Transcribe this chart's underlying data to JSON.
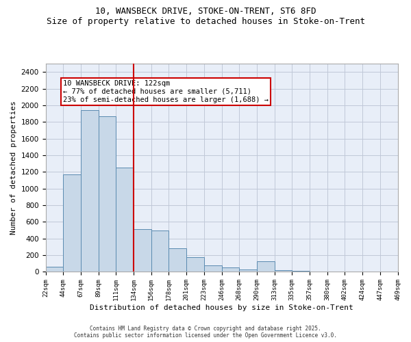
{
  "title_line1": "10, WANSBECK DRIVE, STOKE-ON-TRENT, ST6 8FD",
  "title_line2": "Size of property relative to detached houses in Stoke-on-Trent",
  "xlabel": "Distribution of detached houses by size in Stoke-on-Trent",
  "ylabel": "Number of detached properties",
  "annotation_line1": "10 WANSBECK DRIVE: 122sqm",
  "annotation_line2": "← 77% of detached houses are smaller (5,711)",
  "annotation_line3": "23% of semi-detached houses are larger (1,688) →",
  "bar_values": [
    60,
    1170,
    1940,
    1870,
    1250,
    510,
    500,
    280,
    175,
    80,
    50,
    30,
    130,
    20,
    10,
    5,
    5,
    5,
    5,
    5
  ],
  "bin_labels": [
    "22sqm",
    "44sqm",
    "67sqm",
    "89sqm",
    "111sqm",
    "134sqm",
    "156sqm",
    "178sqm",
    "201sqm",
    "223sqm",
    "246sqm",
    "268sqm",
    "290sqm",
    "313sqm",
    "335sqm",
    "357sqm",
    "380sqm",
    "402sqm",
    "424sqm",
    "447sqm",
    "469sqm"
  ],
  "bar_color": "#c8d8e8",
  "bar_edge_color": "#5a8ab0",
  "grid_color": "#c0c8d8",
  "bg_color": "#e8eef8",
  "vline_x": 4,
  "vline_color": "#cc0000",
  "annotation_box_color": "#cc0000",
  "ylim": [
    0,
    2500
  ],
  "yticks": [
    0,
    200,
    400,
    600,
    800,
    1000,
    1200,
    1400,
    1600,
    1800,
    2000,
    2200,
    2400
  ],
  "footer_line1": "Contains HM Land Registry data © Crown copyright and database right 2025.",
  "footer_line2": "Contains public sector information licensed under the Open Government Licence v3.0."
}
